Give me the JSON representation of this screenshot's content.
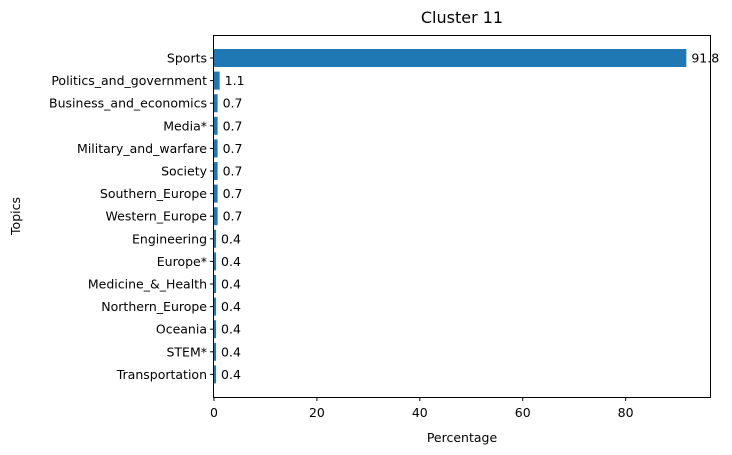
{
  "chart_data": {
    "type": "bar",
    "orientation": "horizontal",
    "title": "Cluster 11",
    "xlabel": "Percentage",
    "ylabel": "Topics",
    "categories": [
      "Sports",
      "Politics_and_government",
      "Business_and_economics",
      "Media*",
      "Military_and_warfare",
      "Society",
      "Southern_Europe",
      "Western_Europe",
      "Engineering",
      "Europe*",
      "Medicine_&_Health",
      "Northern_Europe",
      "Oceania",
      "STEM*",
      "Transportation"
    ],
    "values": [
      91.8,
      1.1,
      0.7,
      0.7,
      0.7,
      0.7,
      0.7,
      0.7,
      0.4,
      0.4,
      0.4,
      0.4,
      0.4,
      0.4,
      0.4
    ],
    "data_labels": [
      "91.8",
      "1.1",
      "0.7",
      "0.7",
      "0.7",
      "0.7",
      "0.7",
      "0.7",
      "0.4",
      "0.4",
      "0.4",
      "0.4",
      "0.4",
      "0.4",
      "0.4"
    ],
    "xlim": [
      0,
      96.4
    ],
    "xticks": [
      0,
      20,
      40,
      60,
      80
    ],
    "grid": false,
    "bar_color": "#1f77b4"
  }
}
